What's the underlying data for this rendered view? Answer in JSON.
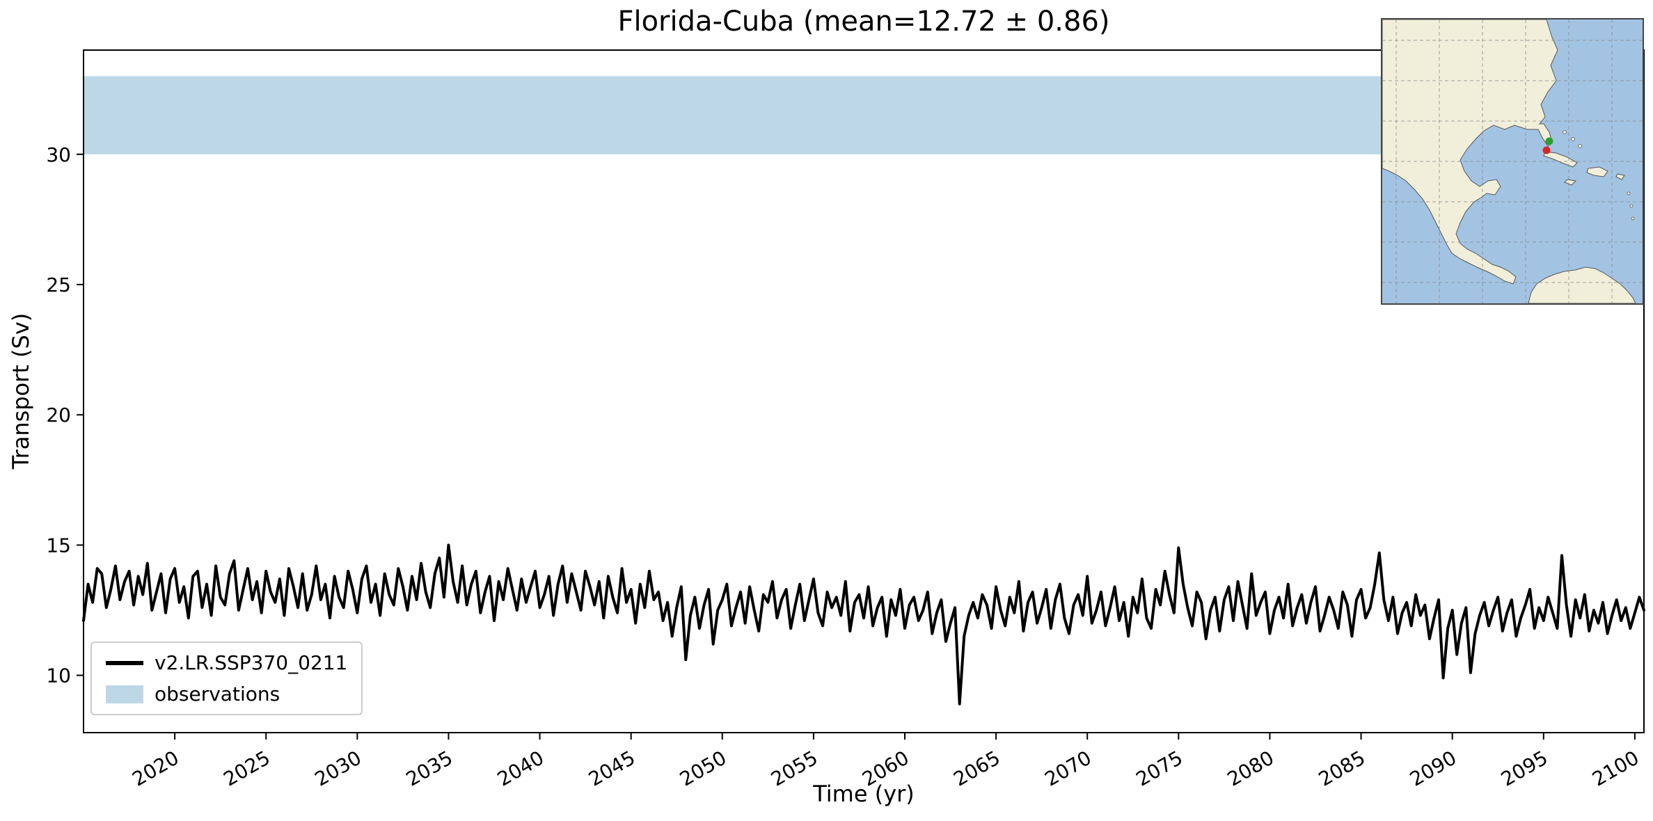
{
  "figure": {
    "title": "Florida-Cuba (mean=12.72 ± 0.86)",
    "xlabel": "Time (yr)",
    "ylabel": "Transport (Sv)"
  },
  "legend": {
    "entries": [
      {
        "label": "v2.LR.SSP370_0211",
        "type": "line",
        "color": "#000000"
      },
      {
        "label": "observations",
        "type": "patch",
        "color": "#bdd7e7"
      }
    ]
  },
  "chart_data": {
    "type": "line",
    "title": "Florida-Cuba (mean=12.72 ± 0.86)",
    "xlabel": "Time (yr)",
    "ylabel": "Transport (Sv)",
    "stats": {
      "mean": 12.72,
      "plus_minus": 0.86
    },
    "xlim": [
      2015,
      2100.5
    ],
    "ylim": [
      7.8,
      34.0
    ],
    "x_ticks": [
      2020,
      2025,
      2030,
      2035,
      2040,
      2045,
      2050,
      2055,
      2060,
      2065,
      2070,
      2075,
      2080,
      2085,
      2090,
      2095,
      2100
    ],
    "y_ticks": [
      10,
      15,
      20,
      25,
      30
    ],
    "grid": false,
    "legend_position": "lower left",
    "bands": [
      {
        "name": "observations",
        "ymin": 30.0,
        "ymax": 33.0,
        "color": "#bdd7e7"
      }
    ],
    "series": [
      {
        "name": "v2.LR.SSP370_0211",
        "color": "#000000",
        "x_start": 2015,
        "x_step": 0.25,
        "values": [
          12.1,
          13.5,
          12.8,
          14.1,
          13.9,
          12.6,
          13.3,
          14.2,
          12.9,
          13.6,
          14.0,
          12.7,
          13.8,
          13.1,
          14.3,
          12.5,
          13.2,
          13.9,
          12.4,
          13.7,
          14.1,
          12.8,
          13.4,
          12.2,
          13.8,
          14.0,
          12.6,
          13.5,
          12.3,
          14.2,
          13.0,
          12.7,
          13.9,
          14.4,
          12.5,
          13.3,
          14.1,
          12.9,
          13.6,
          12.4,
          14.0,
          13.2,
          12.8,
          13.7,
          12.3,
          14.1,
          13.4,
          12.6,
          13.9,
          12.5,
          13.1,
          14.2,
          12.9,
          13.5,
          12.2,
          13.8,
          13.0,
          12.6,
          14.0,
          13.3,
          12.4,
          13.7,
          14.2,
          12.8,
          13.5,
          12.3,
          13.9,
          13.1,
          12.7,
          14.1,
          13.4,
          12.5,
          13.8,
          12.9,
          14.3,
          13.2,
          12.6,
          13.9,
          14.5,
          13.0,
          15.0,
          13.6,
          12.8,
          14.2,
          12.7,
          13.5,
          14.0,
          12.4,
          13.2,
          13.8,
          12.1,
          13.6,
          12.9,
          14.1,
          13.3,
          12.5,
          13.7,
          12.8,
          13.4,
          14.0,
          12.6,
          13.1,
          13.8,
          12.3,
          13.5,
          14.2,
          12.8,
          13.9,
          13.2,
          12.5,
          14.0,
          13.4,
          12.7,
          13.6,
          12.2,
          13.8,
          13.0,
          12.4,
          14.1,
          12.8,
          13.3,
          12.0,
          13.5,
          12.6,
          14.0,
          12.9,
          13.2,
          12.1,
          12.8,
          11.5,
          12.6,
          13.4,
          10.6,
          12.3,
          13.0,
          11.8,
          12.7,
          13.3,
          11.2,
          12.5,
          12.9,
          13.5,
          11.9,
          12.6,
          13.2,
          12.0,
          13.4,
          12.5,
          11.7,
          13.1,
          12.8,
          13.6,
          12.2,
          12.9,
          13.3,
          11.8,
          12.7,
          13.5,
          12.1,
          12.9,
          13.7,
          12.4,
          11.9,
          13.2,
          12.6,
          13.0,
          12.3,
          13.6,
          11.7,
          12.8,
          13.1,
          12.2,
          13.4,
          11.9,
          12.6,
          13.0,
          11.5,
          12.9,
          12.3,
          13.3,
          11.8,
          12.7,
          13.0,
          12.1,
          12.5,
          13.2,
          11.6,
          12.4,
          12.9,
          11.3,
          12.0,
          12.6,
          8.9,
          11.5,
          12.3,
          12.8,
          12.2,
          13.1,
          12.7,
          11.8,
          13.4,
          12.5,
          11.9,
          13.0,
          12.4,
          13.6,
          11.7,
          12.8,
          13.2,
          12.0,
          12.6,
          13.3,
          11.8,
          12.9,
          13.5,
          12.2,
          11.6,
          12.7,
          13.1,
          12.3,
          13.8,
          12.0,
          12.5,
          13.2,
          11.9,
          12.6,
          13.4,
          12.1,
          12.8,
          11.5,
          13.0,
          12.4,
          13.7,
          12.2,
          11.8,
          13.3,
          12.7,
          14.0,
          13.1,
          12.4,
          14.9,
          13.5,
          12.6,
          11.9,
          13.2,
          12.8,
          11.4,
          12.5,
          13.0,
          11.7,
          12.9,
          13.4,
          12.1,
          13.6,
          12.7,
          11.8,
          13.9,
          12.3,
          12.8,
          13.2,
          11.6,
          12.5,
          13.0,
          12.2,
          13.5,
          11.9,
          12.6,
          13.1,
          12.0,
          12.8,
          13.4,
          11.7,
          12.3,
          13.0,
          12.5,
          11.8,
          13.2,
          12.7,
          11.5,
          12.9,
          13.3,
          12.2,
          12.6,
          13.5,
          14.7,
          12.9,
          12.1,
          13.0,
          11.6,
          12.4,
          12.8,
          11.9,
          13.1,
          12.3,
          12.7,
          11.4,
          12.2,
          12.9,
          9.9,
          11.8,
          12.5,
          10.8,
          12.0,
          12.6,
          10.1,
          11.6,
          12.3,
          12.8,
          11.9,
          12.5,
          13.0,
          11.7,
          12.4,
          12.9,
          11.5,
          12.2,
          12.7,
          13.3,
          11.8,
          12.6,
          12.1,
          13.0,
          12.4,
          11.8,
          14.6,
          12.7,
          11.5,
          12.9,
          12.2,
          13.1,
          11.7,
          12.5,
          12.0,
          12.8,
          11.6,
          12.3,
          12.9,
          12.1,
          12.6,
          11.8,
          12.4,
          13.0,
          12.5
        ]
      }
    ],
    "inset_map": {
      "region": "Gulf of Mexico / Caribbean",
      "markers": [
        {
          "name": "section-endpoint-florida",
          "color": "#2ca02c"
        },
        {
          "name": "section-endpoint-cuba",
          "color": "#d62728"
        }
      ],
      "ocean_color": "#a3c3e3",
      "land_color": "#f1efda"
    }
  }
}
